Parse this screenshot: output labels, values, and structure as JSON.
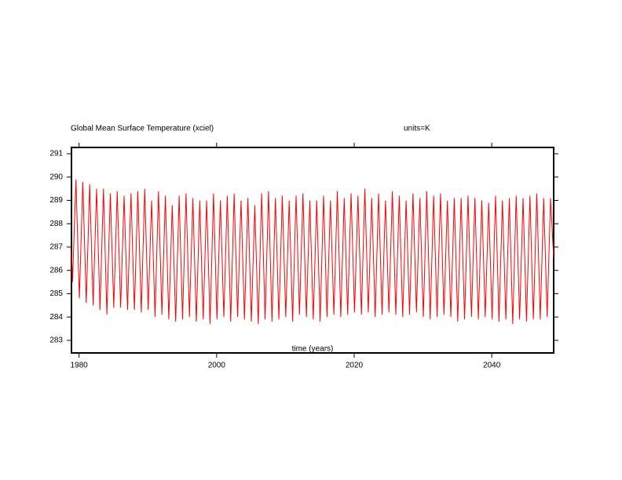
{
  "chart_data": {
    "type": "line",
    "title": "Global Mean Surface Temperature (xciel)",
    "subtitle": "units=K",
    "xlabel": "time (years)",
    "color": "#ff0000",
    "xlim": [
      1978.9,
      2049.0
    ],
    "ylim": [
      282.46,
      291.27
    ],
    "xticks": [
      1980,
      2000,
      2020,
      2040
    ],
    "yticks": [
      283,
      284,
      285,
      286,
      287,
      288,
      289,
      290,
      291
    ],
    "x": [
      1978.9,
      1979.05,
      1979.55,
      1980.05,
      1980.55,
      1981.05,
      1981.55,
      1982.05,
      1982.55,
      1983.05,
      1983.55,
      1984.05,
      1984.55,
      1985.05,
      1985.55,
      1986.05,
      1986.55,
      1987.05,
      1987.55,
      1988.05,
      1988.55,
      1989.05,
      1989.55,
      1990.05,
      1990.55,
      1991.05,
      1991.55,
      1992.05,
      1992.55,
      1993.05,
      1993.55,
      1994.05,
      1994.55,
      1995.05,
      1995.55,
      1996.05,
      1996.55,
      1997.05,
      1997.55,
      1998.05,
      1998.55,
      1999.05,
      1999.55,
      2000.05,
      2000.55,
      2001.05,
      2001.55,
      2002.05,
      2002.55,
      2003.05,
      2003.55,
      2004.05,
      2004.55,
      2005.05,
      2005.55,
      2006.05,
      2006.55,
      2007.05,
      2007.55,
      2008.05,
      2008.55,
      2009.05,
      2009.55,
      2010.05,
      2010.55,
      2011.05,
      2011.55,
      2012.05,
      2012.55,
      2013.05,
      2013.55,
      2014.05,
      2014.55,
      2015.05,
      2015.55,
      2016.05,
      2016.55,
      2017.05,
      2017.55,
      2018.05,
      2018.55,
      2019.05,
      2019.55,
      2020.05,
      2020.55,
      2021.05,
      2021.55,
      2022.05,
      2022.55,
      2023.05,
      2023.55,
      2024.05,
      2024.55,
      2025.05,
      2025.55,
      2026.05,
      2026.55,
      2027.05,
      2027.55,
      2028.05,
      2028.55,
      2029.05,
      2029.55,
      2030.05,
      2030.55,
      2031.05,
      2031.55,
      2032.05,
      2032.55,
      2033.05,
      2033.55,
      2034.05,
      2034.55,
      2035.05,
      2035.55,
      2036.05,
      2036.55,
      2037.05,
      2037.55,
      2038.05,
      2038.55,
      2039.05,
      2039.55,
      2040.05,
      2040.55,
      2041.05,
      2041.55,
      2042.05,
      2042.55,
      2043.05,
      2043.55,
      2044.05,
      2044.55,
      2045.05,
      2045.55,
      2046.05,
      2046.55,
      2047.05,
      2047.55,
      2048.05,
      2048.55,
      2049.0
    ],
    "values": [
      287.0,
      285.5,
      289.9,
      284.8,
      289.8,
      284.6,
      289.7,
      284.5,
      289.5,
      284.3,
      289.5,
      284.1,
      289.3,
      284.4,
      289.4,
      284.4,
      289.2,
      284.3,
      289.3,
      284.3,
      289.4,
      284.2,
      289.5,
      284.3,
      289.0,
      284.0,
      289.4,
      284.1,
      289.2,
      283.9,
      288.8,
      283.8,
      289.2,
      283.9,
      289.3,
      284.0,
      289.1,
      283.8,
      289.0,
      283.9,
      289.0,
      283.7,
      289.3,
      283.9,
      289.0,
      284.0,
      289.2,
      283.8,
      289.3,
      284.0,
      289.0,
      283.9,
      289.1,
      283.8,
      288.8,
      283.7,
      289.3,
      283.9,
      289.4,
      283.8,
      289.1,
      283.9,
      289.2,
      284.0,
      289.0,
      283.8,
      289.2,
      284.1,
      289.3,
      284.0,
      289.0,
      283.9,
      289.0,
      283.8,
      289.2,
      284.0,
      289.0,
      284.1,
      289.4,
      284.0,
      289.1,
      284.1,
      289.3,
      284.2,
      289.2,
      284.1,
      289.5,
      284.2,
      289.1,
      284.0,
      289.3,
      284.1,
      289.0,
      284.2,
      289.4,
      284.1,
      289.2,
      284.0,
      289.0,
      284.1,
      289.3,
      284.2,
      289.1,
      284.0,
      289.4,
      283.9,
      289.2,
      284.0,
      289.3,
      284.1,
      289.0,
      284.0,
      289.1,
      283.8,
      289.1,
      283.9,
      289.2,
      284.0,
      289.1,
      283.9,
      289.0,
      284.0,
      288.9,
      283.9,
      289.2,
      283.8,
      289.0,
      283.9,
      289.1,
      283.7,
      289.2,
      283.9,
      289.1,
      283.8,
      289.2,
      283.9,
      289.3,
      283.9,
      289.1,
      284.0,
      289.1,
      286.5
    ]
  }
}
